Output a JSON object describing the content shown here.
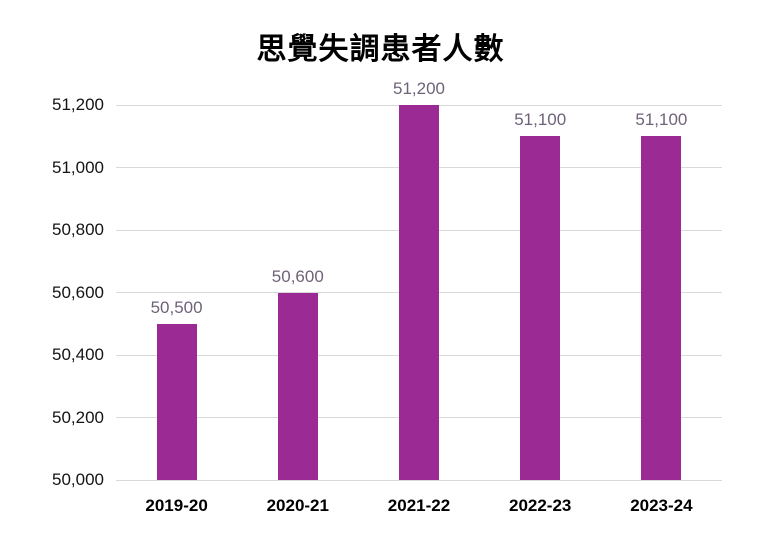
{
  "chart_data": {
    "type": "bar",
    "title": "思覺失調患者人數",
    "categories": [
      "2019-20",
      "2020-21",
      "2021-22",
      "2022-23",
      "2023-24"
    ],
    "values": [
      50500,
      50600,
      51200,
      51100,
      51100
    ],
    "data_labels": [
      "50,500",
      "50,600",
      "51,200",
      "51,100",
      "51,100"
    ],
    "y_tick_labels": [
      "51,200",
      "51,000",
      "50,800",
      "50,600",
      "50,400",
      "50,200",
      "50,000"
    ],
    "y_tick_values": [
      51200,
      51000,
      50800,
      50600,
      50400,
      50200,
      50000
    ],
    "ylim": [
      50000,
      51200
    ],
    "y_step": 200,
    "xlabel": "",
    "ylabel": "",
    "grid": true,
    "legend": "none",
    "colors": {
      "bar_fill": "#9C2A94",
      "data_label": "#6F6279",
      "gridline": "#D9D9D9",
      "axis_text": "#141414",
      "title_text": "#000000",
      "background": "#FFFFFF"
    }
  }
}
